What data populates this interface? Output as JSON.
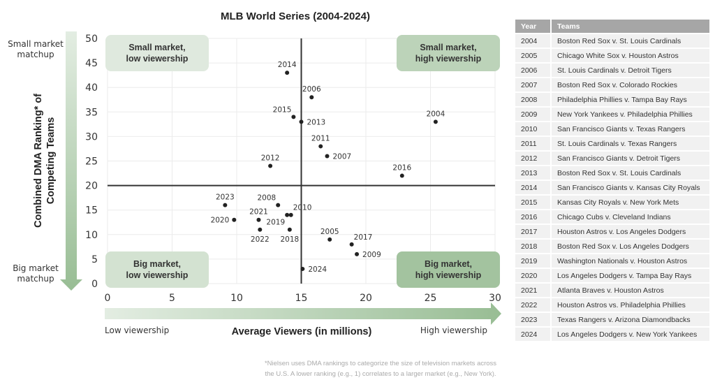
{
  "chart_data": {
    "type": "scatter",
    "title": "MLB World Series (2004-2024)",
    "xlabel": "Average Viewers (in millions)",
    "ylabel": "Combined DMA Ranking* of Competing Teams",
    "xlim": [
      0,
      30
    ],
    "ylim": [
      0,
      50
    ],
    "xticks": [
      "0",
      "5",
      "10",
      "15",
      "20",
      "25",
      "30"
    ],
    "yticks": [
      "0",
      "5",
      "10",
      "15",
      "20",
      "25",
      "30",
      "35",
      "40",
      "45",
      "50"
    ],
    "grid": true,
    "reference_lines": {
      "x": 15,
      "y": 20
    },
    "x_arrow_labels": {
      "low": "Low viewership",
      "high": "High viewership"
    },
    "y_arrow_labels": {
      "top": "Small market matchup",
      "bottom": "Big market matchup"
    },
    "quadrants": [
      {
        "label_line1": "Small market,",
        "label_line2": "low viewership",
        "position": "top-left",
        "color": "#dfe9de"
      },
      {
        "label_line1": "Small market,",
        "label_line2": "high viewership",
        "position": "top-right",
        "color": "#bcd3b9"
      },
      {
        "label_line1": "Big market,",
        "label_line2": "low viewership",
        "position": "bottom-left",
        "color": "#d3e2d1"
      },
      {
        "label_line1": "Big market,",
        "label_line2": "high viewership",
        "position": "bottom-right",
        "color": "#a3c39f"
      }
    ],
    "points": [
      {
        "label": "2004",
        "x": 25.4,
        "y": 33,
        "label_pos": "above"
      },
      {
        "label": "2005",
        "x": 17.2,
        "y": 9,
        "label_pos": "above"
      },
      {
        "label": "2006",
        "x": 15.8,
        "y": 38,
        "label_pos": "above"
      },
      {
        "label": "2007",
        "x": 17.0,
        "y": 26,
        "label_pos": "right"
      },
      {
        "label": "2008",
        "x": 13.2,
        "y": 16,
        "label_pos": "above-left"
      },
      {
        "label": "2009",
        "x": 19.3,
        "y": 6,
        "label_pos": "right"
      },
      {
        "label": "2010",
        "x": 14.2,
        "y": 14,
        "label_pos": "above-right"
      },
      {
        "label": "2011",
        "x": 16.5,
        "y": 28,
        "label_pos": "above"
      },
      {
        "label": "2012",
        "x": 12.6,
        "y": 24,
        "label_pos": "above"
      },
      {
        "label": "2013",
        "x": 15.0,
        "y": 33,
        "label_pos": "right"
      },
      {
        "label": "2014",
        "x": 13.9,
        "y": 43,
        "label_pos": "above"
      },
      {
        "label": "2015",
        "x": 14.4,
        "y": 34,
        "label_pos": "above-left"
      },
      {
        "label": "2016",
        "x": 22.8,
        "y": 22,
        "label_pos": "above"
      },
      {
        "label": "2017",
        "x": 18.9,
        "y": 8,
        "label_pos": "above-right"
      },
      {
        "label": "2018",
        "x": 14.1,
        "y": 11,
        "label_pos": "below"
      },
      {
        "label": "2019",
        "x": 13.9,
        "y": 14,
        "label_pos": "below-left"
      },
      {
        "label": "2020",
        "x": 9.8,
        "y": 13,
        "label_pos": "left"
      },
      {
        "label": "2021",
        "x": 11.7,
        "y": 13,
        "label_pos": "above"
      },
      {
        "label": "2022",
        "x": 11.8,
        "y": 11,
        "label_pos": "below"
      },
      {
        "label": "2023",
        "x": 9.1,
        "y": 16,
        "label_pos": "above"
      },
      {
        "label": "2024",
        "x": 15.1,
        "y": 3,
        "label_pos": "right"
      }
    ],
    "footnote_line1": "*Nielsen uses DMA rankings to categorize the size of television markets across",
    "footnote_line2": "the U.S. A lower ranking (e.g., 1) correlates to a larger market (e.g., New York).",
    "colors": {
      "point": "#222222",
      "refline": "#333333",
      "grid": "#ebebeb",
      "arrow_light": "#e3ede2",
      "arrow_dark": "#98bd94"
    }
  },
  "table": {
    "headers": [
      "Year",
      "Teams"
    ],
    "rows": [
      [
        "2004",
        "Boston Red Sox v. St. Louis Cardinals"
      ],
      [
        "2005",
        "Chicago White Sox v. Houston Astros"
      ],
      [
        "2006",
        "St. Louis Cardinals v. Detroit Tigers"
      ],
      [
        "2007",
        "Boston Red Sox v. Colorado Rockies"
      ],
      [
        "2008",
        "Philadelphia Phillies v. Tampa Bay Rays"
      ],
      [
        "2009",
        "New York Yankees v. Philadelphia Phillies"
      ],
      [
        "2010",
        "San Francisco Giants v. Texas Rangers"
      ],
      [
        "2011",
        "St. Louis Cardinals v. Texas Rangers"
      ],
      [
        "2012",
        "San Francisco Giants v. Detroit Tigers"
      ],
      [
        "2013",
        "Boston Red Sox v. St. Louis Cardinals"
      ],
      [
        "2014",
        "San Francisco Giants v. Kansas City Royals"
      ],
      [
        "2015",
        "Kansas City Royals v. New York Mets"
      ],
      [
        "2016",
        "Chicago Cubs v. Cleveland Indians"
      ],
      [
        "2017",
        "Houston Astros v. Los Angeles Dodgers"
      ],
      [
        "2018",
        "Boston Red Sox v. Los Angeles Dodgers"
      ],
      [
        "2019",
        "Washington Nationals v. Houston Astros"
      ],
      [
        "2020",
        "Los Angeles Dodgers v. Tampa Bay Rays"
      ],
      [
        "2021",
        "Atlanta Braves v. Houston Astros"
      ],
      [
        "2022",
        "Houston Astros vs. Philadelphia Phillies"
      ],
      [
        "2023",
        "Texas Rangers v. Arizona Diamondbacks"
      ],
      [
        "2024",
        "Los Angeles Dodgers v. New York Yankees"
      ]
    ]
  }
}
